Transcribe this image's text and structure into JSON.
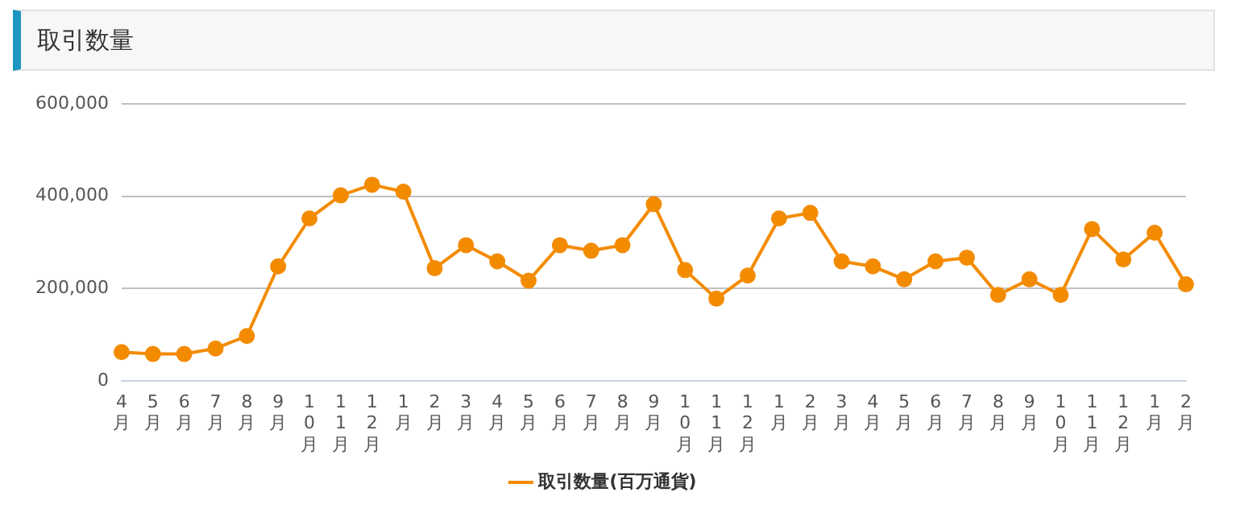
{
  "chart_data": {
    "type": "line",
    "title": "取引数量",
    "categories": [
      "4月",
      "5月",
      "6月",
      "7月",
      "8月",
      "9月",
      "10月",
      "11月",
      "12月",
      "1月",
      "2月",
      "3月",
      "4月",
      "5月",
      "6月",
      "7月",
      "8月",
      "9月",
      "10月",
      "11月",
      "12月",
      "1月",
      "2月",
      "3月",
      "4月",
      "5月",
      "6月",
      "7月",
      "8月",
      "9月",
      "10月",
      "11月",
      "12月",
      "1月",
      "2月"
    ],
    "series": [
      {
        "name": "取引数量(百万通貨)",
        "color": "#f38b00",
        "values": [
          62000,
          58000,
          58000,
          70000,
          97000,
          248000,
          352000,
          402000,
          425000,
          410000,
          244000,
          294000,
          259000,
          217000,
          294000,
          282000,
          294000,
          383000,
          240000,
          178000,
          228000,
          352000,
          364000,
          259000,
          248000,
          220000,
          259000,
          267000,
          186000,
          220000,
          186000,
          329000,
          263000,
          321000,
          209000
        ]
      }
    ],
    "ylim": [
      0,
      600000
    ],
    "yticks": [
      {
        "value": 0,
        "label": "0"
      },
      {
        "value": 200000,
        "label": "200,000"
      },
      {
        "value": 400000,
        "label": "400,000"
      },
      {
        "value": 600000,
        "label": "600,000"
      }
    ],
    "grid": "y",
    "legend": "bottom",
    "marker": "circle",
    "line_style": "solid"
  }
}
